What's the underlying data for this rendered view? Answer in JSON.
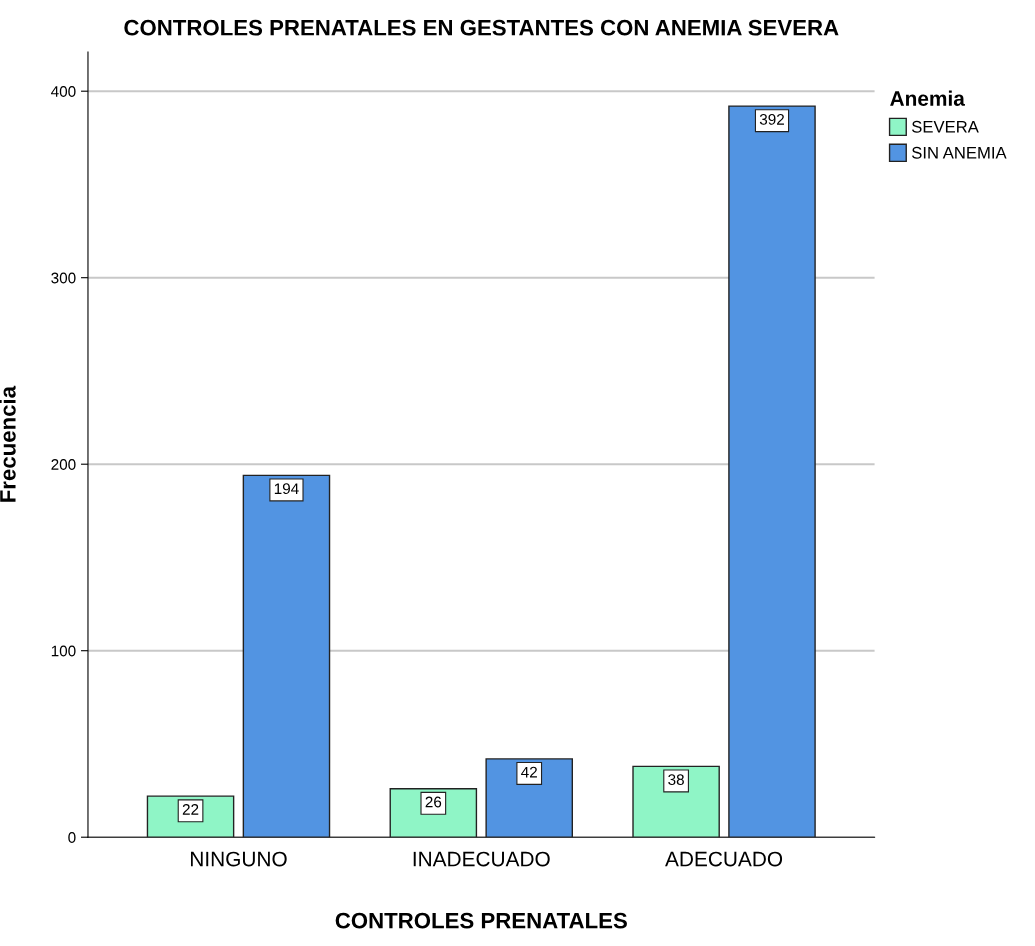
{
  "chart_data": {
    "type": "bar",
    "title": "CONTROLES PRENATALES EN GESTANTES CON ANEMIA SEVERA",
    "xlabel": "CONTROLES PRENATALES",
    "ylabel": "Frecuencia",
    "legend_title": "Anemia",
    "categories": [
      "NINGUNO",
      "INADECUADO",
      "ADECUADO"
    ],
    "series": [
      {
        "name": "SEVERA",
        "color": "#8ff5c6",
        "values": [
          22,
          26,
          38
        ]
      },
      {
        "name": "SIN ANEMIA",
        "color": "#5294e2",
        "values": [
          194,
          42,
          392
        ]
      }
    ],
    "ylim": [
      0,
      421
    ],
    "yticks": [
      0,
      100,
      200,
      300,
      400
    ],
    "grid": "y",
    "legend": "top right",
    "data_labels": true
  }
}
